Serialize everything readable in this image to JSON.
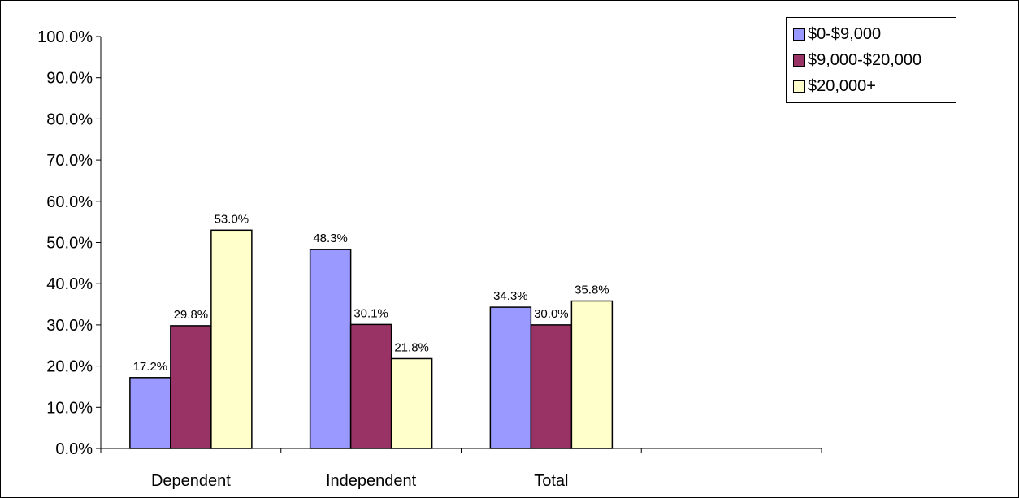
{
  "chart_data": {
    "type": "bar",
    "categories": [
      "Dependent",
      "Independent",
      "Total",
      ""
    ],
    "series": [
      {
        "name": "$0-$9,000",
        "color": "#9999ff",
        "values": [
          17.2,
          48.3,
          34.3,
          null
        ],
        "labels": [
          "17.2%",
          "48.3%",
          "34.3%",
          ""
        ]
      },
      {
        "name": "$9,000-$20,000",
        "color": "#993366",
        "values": [
          29.8,
          30.1,
          30.0,
          null
        ],
        "labels": [
          "29.8%",
          "30.1%",
          "30.0%",
          ""
        ]
      },
      {
        "name": "$20,000+",
        "color": "#ffffcc",
        "values": [
          53.0,
          21.8,
          35.8,
          null
        ],
        "labels": [
          "53.0%",
          "21.8%",
          "35.8%",
          ""
        ]
      }
    ],
    "yticks": [
      "0.0%",
      "10.0%",
      "20.0%",
      "30.0%",
      "40.0%",
      "50.0%",
      "60.0%",
      "70.0%",
      "80.0%",
      "90.0%",
      "100.0%"
    ],
    "ylim": [
      0,
      100
    ],
    "title": "",
    "xlabel": "",
    "ylabel": "",
    "grid": false,
    "legend_position": "top-right"
  }
}
